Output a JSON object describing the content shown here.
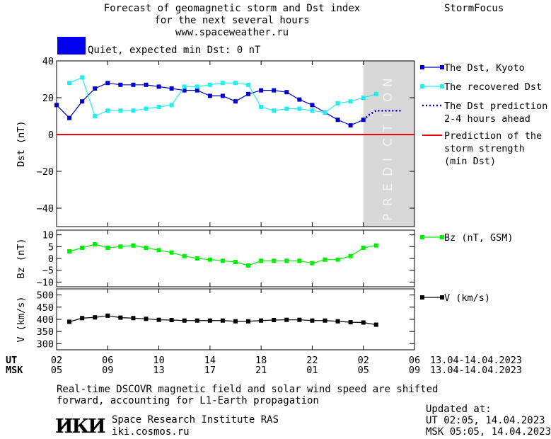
{
  "header": {
    "title_line1": "Forecast of geomagnetic storm and Dst index",
    "title_line2": "for the next several hours",
    "url": "www.spaceweather.ru",
    "brand": "StormFocus"
  },
  "status": {
    "text": "Quiet, expected min Dst: 0 nT",
    "swatch_color": "#0000ee"
  },
  "footer": {
    "note_line1": "Real-time DSCOVR magnetic field and solar wind speed are shifted",
    "note_line2": "forward, accounting for L1-Earth propagation",
    "institute": "Space Research Institute RAS",
    "site": "iki.cosmos.ru",
    "logo_text": "ИКИ",
    "updated_label": "Updated at:",
    "updated_ut": "UT   02:05, 14.04.2023",
    "updated_msk": "MSK 05:05, 14.04.2023"
  },
  "chart_data": {
    "type": "line",
    "x_tick_labels_ut": [
      "02",
      "06",
      "10",
      "14",
      "18",
      "22",
      "02",
      "06"
    ],
    "x_tick_labels_msk": [
      "05",
      "09",
      "13",
      "17",
      "21",
      "01",
      "05",
      "09"
    ],
    "x_axis_ut_label": "UT",
    "x_axis_msk_label": "MSK",
    "date_range_ut": "13.04-14.04.2023",
    "date_range_msk": "13.04-14.04.2023",
    "x_unit": "hours since 13.04 02:00 UT",
    "xlim": [
      0,
      28
    ],
    "prediction_label": "PREDICTION",
    "prediction_range": [
      24,
      28
    ],
    "panels": [
      {
        "name": "dst",
        "ylabel": "Dst (nT)",
        "ylim": [
          -50,
          40
        ],
        "yticks": [
          40,
          20,
          0,
          -20,
          -40
        ],
        "series": [
          {
            "name": "The Dst, Kyoto",
            "color": "#0000cc",
            "style": "solid-marker",
            "x": [
              0,
              1,
              2,
              3,
              4,
              5,
              6,
              7,
              8,
              9,
              10,
              11,
              12,
              13,
              14,
              15,
              16,
              17,
              18,
              19,
              20,
              21,
              22,
              23,
              24
            ],
            "y": [
              16,
              9,
              18,
              25,
              28,
              27,
              27,
              27,
              26,
              25,
              24,
              24,
              21,
              21,
              18,
              22,
              24,
              24,
              23,
              19,
              16,
              12,
              8,
              5,
              8
            ]
          },
          {
            "name": "The recovered Dst",
            "color": "#22eeee",
            "style": "solid-marker",
            "x": [
              1,
              2,
              3,
              4,
              5,
              6,
              7,
              8,
              9,
              10,
              11,
              12,
              13,
              14,
              15,
              16,
              17,
              18,
              19,
              20,
              21,
              22,
              23,
              24,
              25
            ],
            "y": [
              28,
              31,
              10,
              13,
              13,
              13,
              14,
              15,
              16,
              26,
              26,
              27,
              28,
              28,
              27,
              15,
              13,
              14,
              14,
              13,
              12,
              17,
              18,
              20,
              22
            ]
          },
          {
            "name": "The Dst prediction",
            "name_line2": "2-4 hours ahead",
            "color": "#0000cc",
            "style": "dotted",
            "x": [
              24,
              24.5,
              25,
              26,
              27
            ],
            "y": [
              8,
              11,
              13,
              13,
              13
            ]
          },
          {
            "name": "Prediction of the",
            "name_line2": "storm strength",
            "name_line3": "(min Dst)",
            "color": "#ee0000",
            "style": "hline",
            "y_const": 0
          }
        ]
      },
      {
        "name": "bz",
        "ylabel": "Bz (nT)",
        "ylim": [
          -12,
          12
        ],
        "yticks": [
          10,
          5,
          0,
          -5,
          -10
        ],
        "series": [
          {
            "name": "Bz (nT, GSM)",
            "color": "#00ee00",
            "style": "solid-marker",
            "x": [
              1,
              2,
              3,
              4,
              5,
              6,
              7,
              8,
              9,
              10,
              11,
              12,
              13,
              14,
              15,
              16,
              17,
              18,
              19,
              20,
              21,
              22,
              23,
              24,
              25
            ],
            "y": [
              3,
              4.5,
              6,
              4.5,
              5,
              5.5,
              4.5,
              3.5,
              2.5,
              1,
              0,
              -0.5,
              -1,
              -1.5,
              -3,
              -1,
              -1,
              -1,
              -1,
              -2,
              -0.5,
              -0.5,
              1,
              4.5,
              5.5
            ]
          }
        ]
      },
      {
        "name": "v",
        "ylabel": "V (km/s)",
        "ylim": [
          275,
          525
        ],
        "yticks": [
          500,
          450,
          400,
          350,
          300
        ],
        "series": [
          {
            "name": "V (km/s)",
            "color": "#000000",
            "style": "solid-marker",
            "x": [
              1,
              2,
              3,
              4,
              5,
              6,
              7,
              8,
              9,
              10,
              11,
              12,
              13,
              14,
              15,
              16,
              17,
              18,
              19,
              20,
              21,
              22,
              23,
              24,
              25
            ],
            "y": [
              390,
              405,
              408,
              415,
              407,
              405,
              402,
              398,
              397,
              395,
              395,
              395,
              395,
              392,
              392,
              395,
              397,
              398,
              398,
              395,
              395,
              392,
              388,
              387,
              378
            ]
          }
        ]
      }
    ]
  }
}
